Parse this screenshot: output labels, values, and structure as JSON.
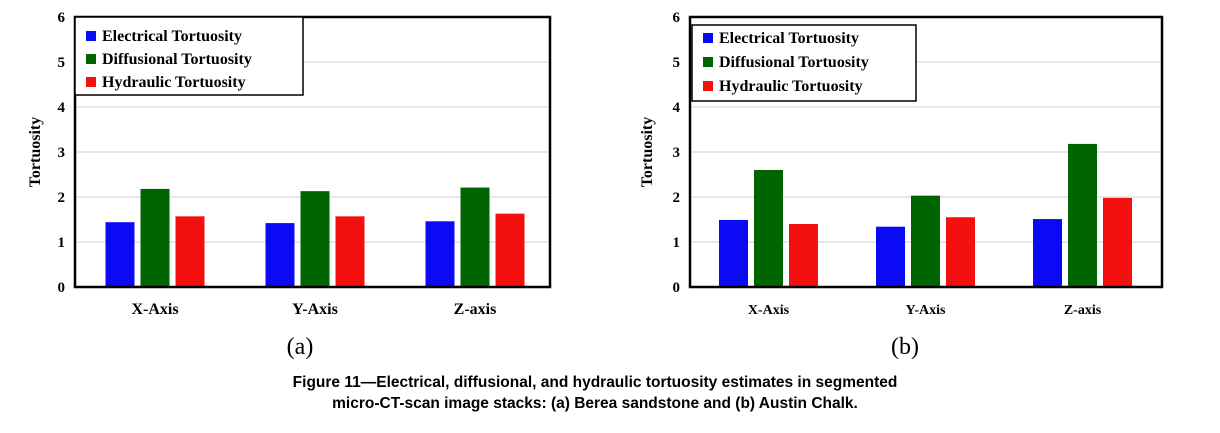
{
  "colors": {
    "Electrical Tortuosity": "#0a0af5",
    "Diffusional Tortuosity": "#006400",
    "Hydraulic Tortuosity": "#f51010",
    "grid": "#d9d9d9"
  },
  "chart_data": [
    {
      "type": "bar",
      "panel_label": "(a)",
      "ylabel": "Tortuosity",
      "ylim": [
        0,
        6
      ],
      "yticks": [
        "0",
        "1",
        "2",
        "3",
        "4",
        "5",
        "6"
      ],
      "categories": [
        "X-Axis",
        "Y-Axis",
        "Z-axis"
      ],
      "legend_position": "top-left",
      "grid": true,
      "series": [
        {
          "name": "Electrical Tortuosity",
          "values": [
            1.44,
            1.42,
            1.46
          ]
        },
        {
          "name": "Diffusional Tortuosity",
          "values": [
            2.18,
            2.13,
            2.21
          ]
        },
        {
          "name": "Hydraulic Tortuosity",
          "values": [
            1.57,
            1.57,
            1.63
          ]
        }
      ]
    },
    {
      "type": "bar",
      "panel_label": "(b)",
      "ylabel": "Tortuosity",
      "ylim": [
        0,
        6
      ],
      "yticks": [
        "0",
        "1",
        "2",
        "3",
        "4",
        "5",
        "6"
      ],
      "categories": [
        "X-Axis",
        "Y-Axis",
        "Z-axis"
      ],
      "legend_position": "top-left",
      "grid": true,
      "series": [
        {
          "name": "Electrical Tortuosity",
          "values": [
            1.49,
            1.34,
            1.51
          ]
        },
        {
          "name": "Diffusional Tortuosity",
          "values": [
            2.6,
            2.03,
            3.18
          ]
        },
        {
          "name": "Hydraulic Tortuosity",
          "values": [
            1.4,
            1.55,
            1.98
          ]
        }
      ]
    }
  ],
  "caption": {
    "line1": "Figure 11—Electrical, diffusional, and hydraulic tortuosity estimates in segmented",
    "line2": "micro-CT-scan image stacks: (a) Berea sandstone and (b) Austin Chalk."
  }
}
